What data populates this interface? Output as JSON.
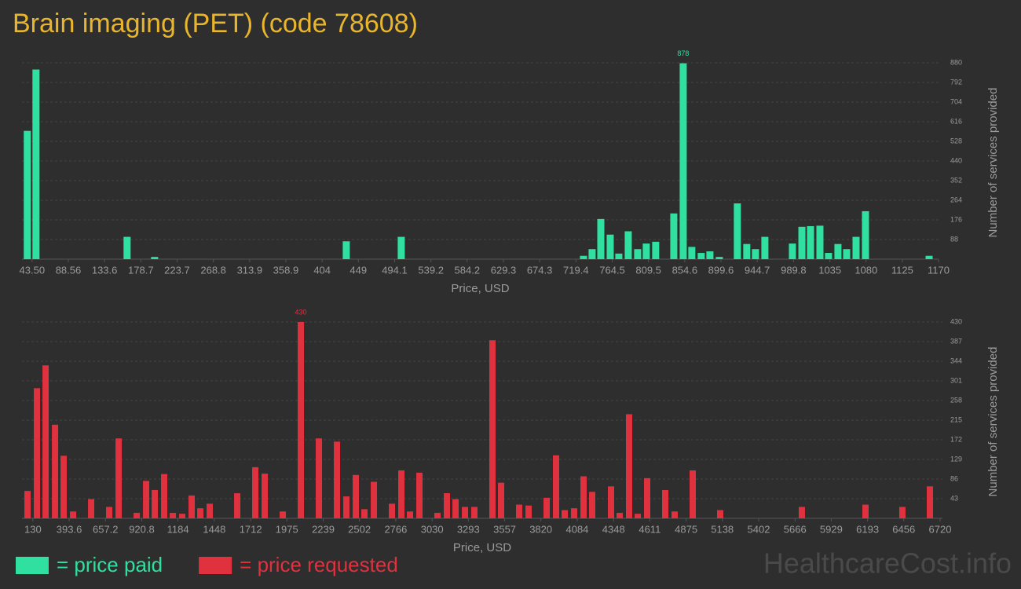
{
  "title": "Brain imaging (PET) (code 78608)",
  "watermark": "HealthcareCost.info",
  "chart_data": [
    {
      "type": "bar",
      "x_label": "Price, USD",
      "y_label": "Number of services provided",
      "x": [
        37.6,
        48.4,
        161.6,
        195.8,
        434,
        502.3,
        728.8,
        739.5,
        750.3,
        762,
        772.7,
        784.4,
        796.1,
        806.8,
        818.5,
        841,
        852.7,
        863.4,
        875.1,
        885.9,
        897.6,
        920,
        931.7,
        942.5,
        954.2,
        988.4,
        1000.2,
        1010.9,
        1022.6,
        1033.3,
        1045,
        1055.8,
        1067.5,
        1079.2,
        1158.3
      ],
      "series": [
        {
          "name": "= price paid",
          "color": "#2fe0a0",
          "values": [
            575,
            850,
            100,
            10,
            80,
            100,
            15,
            45,
            180,
            110,
            25,
            125,
            45,
            70,
            78,
            205,
            878,
            55,
            28,
            35,
            10,
            250,
            68,
            45,
            100,
            70,
            145,
            148,
            150,
            28,
            68,
            45,
            100,
            215,
            15
          ]
        }
      ],
      "label_max": true,
      "xlim": [
        31,
        1170
      ],
      "xticks": [
        {
          "value": 43.5,
          "label": "43.50"
        },
        88.56,
        133.6,
        178.7,
        223.7,
        268.8,
        313.9,
        358.9,
        404,
        449,
        494.1,
        539.2,
        584.2,
        629.3,
        674.3,
        719.4,
        764.5,
        809.5,
        854.6,
        899.6,
        944.7,
        989.8,
        1035,
        1080,
        1125,
        1170
      ],
      "ylim": [
        0,
        880
      ],
      "yticks": [
        88,
        176,
        264,
        352,
        440,
        528,
        616,
        704,
        792,
        880
      ],
      "grid": true
    },
    {
      "type": "bar",
      "x_label": "Price, USD",
      "y_label": "Number of services provided",
      "x": [
        91.3,
        159.7,
        222.5,
        290.9,
        353.7,
        422.1,
        553.3,
        684.5,
        753,
        884.2,
        952.6,
        1015.4,
        1083.8,
        1146.6,
        1215,
        1283.5,
        1346.3,
        1414.7,
        1614.4,
        1745.6,
        1814,
        1945.2,
        2076.4,
        2207.6,
        2338.8,
        2407.3,
        2475.7,
        2538.5,
        2607,
        2738.2,
        2806.6,
        2869.3,
        2937.8,
        3069,
        3137.4,
        3200.2,
        3268.6,
        3337.1,
        3468.3,
        3531,
        3662.2,
        3730.7,
        3861.9,
        3930.3,
        3993.1,
        4061.5,
        4130,
        4192.7,
        4329.6,
        4392.4,
        4460.8,
        4523.6,
        4592,
        4723.2,
        4791.7,
        4922.9,
        5122.5,
        5715.8,
        6177.9,
        6446,
        6645.7
      ],
      "series": [
        {
          "name": "= price requested",
          "color": "#e0313f",
          "values": [
            60,
            285,
            335,
            205,
            137,
            15,
            42,
            25,
            175,
            12,
            82,
            62,
            97,
            12,
            10,
            50,
            22,
            32,
            55,
            112,
            98,
            15,
            430,
            175,
            168,
            48,
            95,
            20,
            80,
            32,
            105,
            15,
            100,
            12,
            55,
            42,
            25,
            25,
            390,
            78,
            30,
            28,
            45,
            138,
            18,
            22,
            92,
            58,
            70,
            12,
            228,
            10,
            88,
            62,
            15,
            105,
            18,
            25,
            30,
            25,
            70
          ]
        }
      ],
      "label_max": true,
      "xlim": [
        51,
        6737
      ],
      "xticks": [
        130,
        393.6,
        657.2,
        920.8,
        1184,
        1448,
        1712,
        1975,
        2239,
        2502,
        2766,
        3030,
        3293,
        3557,
        3820,
        4084,
        4348,
        4611,
        4875,
        5138,
        5402,
        5666,
        5929,
        6193,
        6456,
        6720
      ],
      "ylim": [
        0,
        430
      ],
      "yticks": [
        43,
        86,
        129,
        172,
        215,
        258,
        301,
        344,
        387,
        430
      ],
      "grid": true
    }
  ]
}
